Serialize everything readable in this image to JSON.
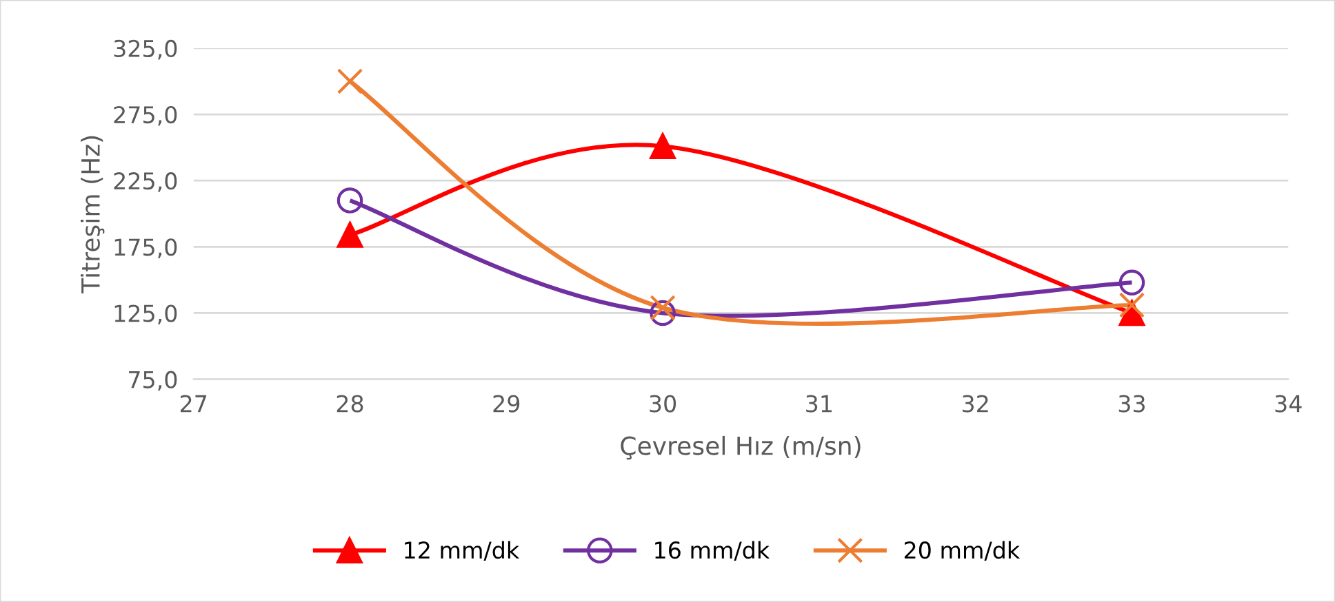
{
  "chart_data": {
    "type": "line",
    "xlabel": "Çevresel Hız (m/sn)",
    "ylabel": "Titreşim (Hz)",
    "x": [
      28,
      30,
      33
    ],
    "series": [
      {
        "name": "12 mm/dk",
        "color": "#ff0000",
        "marker": "triangle",
        "values": [
          184,
          251,
          125
        ]
      },
      {
        "name": "16 mm/dk",
        "color": "#7030a0",
        "marker": "circle",
        "values": [
          210,
          125,
          148
        ]
      },
      {
        "name": "20 mm/dk",
        "color": "#ed7d31",
        "marker": "cross",
        "values": [
          300,
          129,
          131
        ]
      }
    ],
    "xlim": [
      27,
      34
    ],
    "xticks": [
      27,
      28,
      29,
      30,
      31,
      32,
      33,
      34
    ],
    "ylim": [
      75,
      325
    ],
    "yticks": [
      {
        "value": 75,
        "label": "75,0"
      },
      {
        "value": 125,
        "label": "125,0"
      },
      {
        "value": 175,
        "label": "175,0"
      },
      {
        "value": 225,
        "label": "225,0"
      },
      {
        "value": 275,
        "label": "275,0"
      },
      {
        "value": 325,
        "label": "325,0"
      }
    ],
    "grid": "y",
    "legend": "bottom",
    "line_style": "solid"
  }
}
